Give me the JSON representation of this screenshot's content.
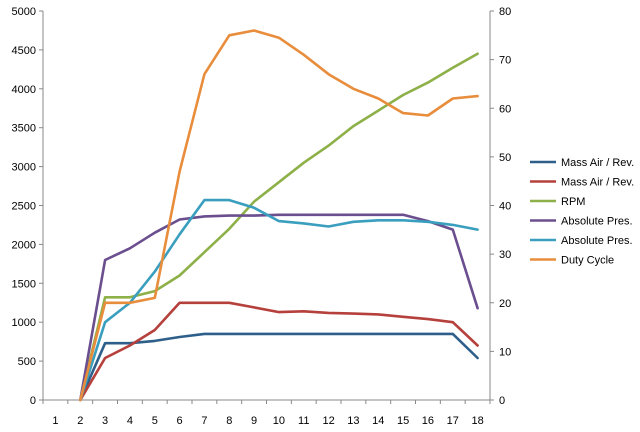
{
  "chart_data": {
    "type": "line",
    "title": "",
    "x": [
      1,
      2,
      3,
      4,
      5,
      6,
      7,
      8,
      9,
      10,
      11,
      12,
      13,
      14,
      15,
      16,
      17,
      18
    ],
    "y_left_ticks": [
      0,
      500,
      1000,
      1500,
      2000,
      2500,
      3000,
      3500,
      4000,
      4500,
      5000
    ],
    "y_right_ticks": [
      0,
      10,
      20,
      30,
      40,
      50,
      60,
      70,
      80
    ],
    "ylim_left": [
      0,
      5000
    ],
    "ylim_right": [
      0,
      80
    ],
    "grid": false,
    "legend_position": "right",
    "series": [
      {
        "name": "Mass Air / Rev.",
        "color": "#2e5f8a",
        "axis": "left",
        "values": [
          null,
          0,
          730,
          730,
          760,
          810,
          850,
          850,
          850,
          850,
          850,
          850,
          850,
          850,
          850,
          850,
          850,
          540
        ]
      },
      {
        "name": "Mass Air / Rev.",
        "color": "#b5403c",
        "axis": "left",
        "values": [
          null,
          0,
          540,
          700,
          900,
          1250,
          1250,
          1250,
          1190,
          1130,
          1140,
          1120,
          1110,
          1100,
          1070,
          1040,
          1000,
          700
        ]
      },
      {
        "name": "RPM",
        "color": "#8db049",
        "axis": "left",
        "values": [
          null,
          0,
          1320,
          1320,
          1400,
          1600,
          1900,
          2200,
          2550,
          2800,
          3050,
          3270,
          3520,
          3720,
          3920,
          4080,
          4270,
          4450
        ]
      },
      {
        "name": "Absolute Pres.",
        "color": "#6a4e8e",
        "axis": "left",
        "values": [
          null,
          0,
          1800,
          1950,
          2150,
          2320,
          2360,
          2370,
          2370,
          2380,
          2380,
          2380,
          2380,
          2380,
          2380,
          2300,
          2190,
          1180
        ]
      },
      {
        "name": "Absolute Pres.",
        "color": "#3a9fbf",
        "axis": "left",
        "values": [
          null,
          0,
          1000,
          1250,
          1650,
          2130,
          2570,
          2570,
          2470,
          2300,
          2270,
          2230,
          2290,
          2310,
          2310,
          2290,
          2250,
          2190
        ]
      },
      {
        "name": "Duty Cycle",
        "color": "#e88d3c",
        "axis": "right",
        "values": [
          null,
          0,
          20,
          20,
          21,
          47,
          67,
          75,
          76,
          74.5,
          71,
          67,
          64,
          62,
          59,
          58.5,
          62,
          62.5
        ]
      }
    ]
  }
}
